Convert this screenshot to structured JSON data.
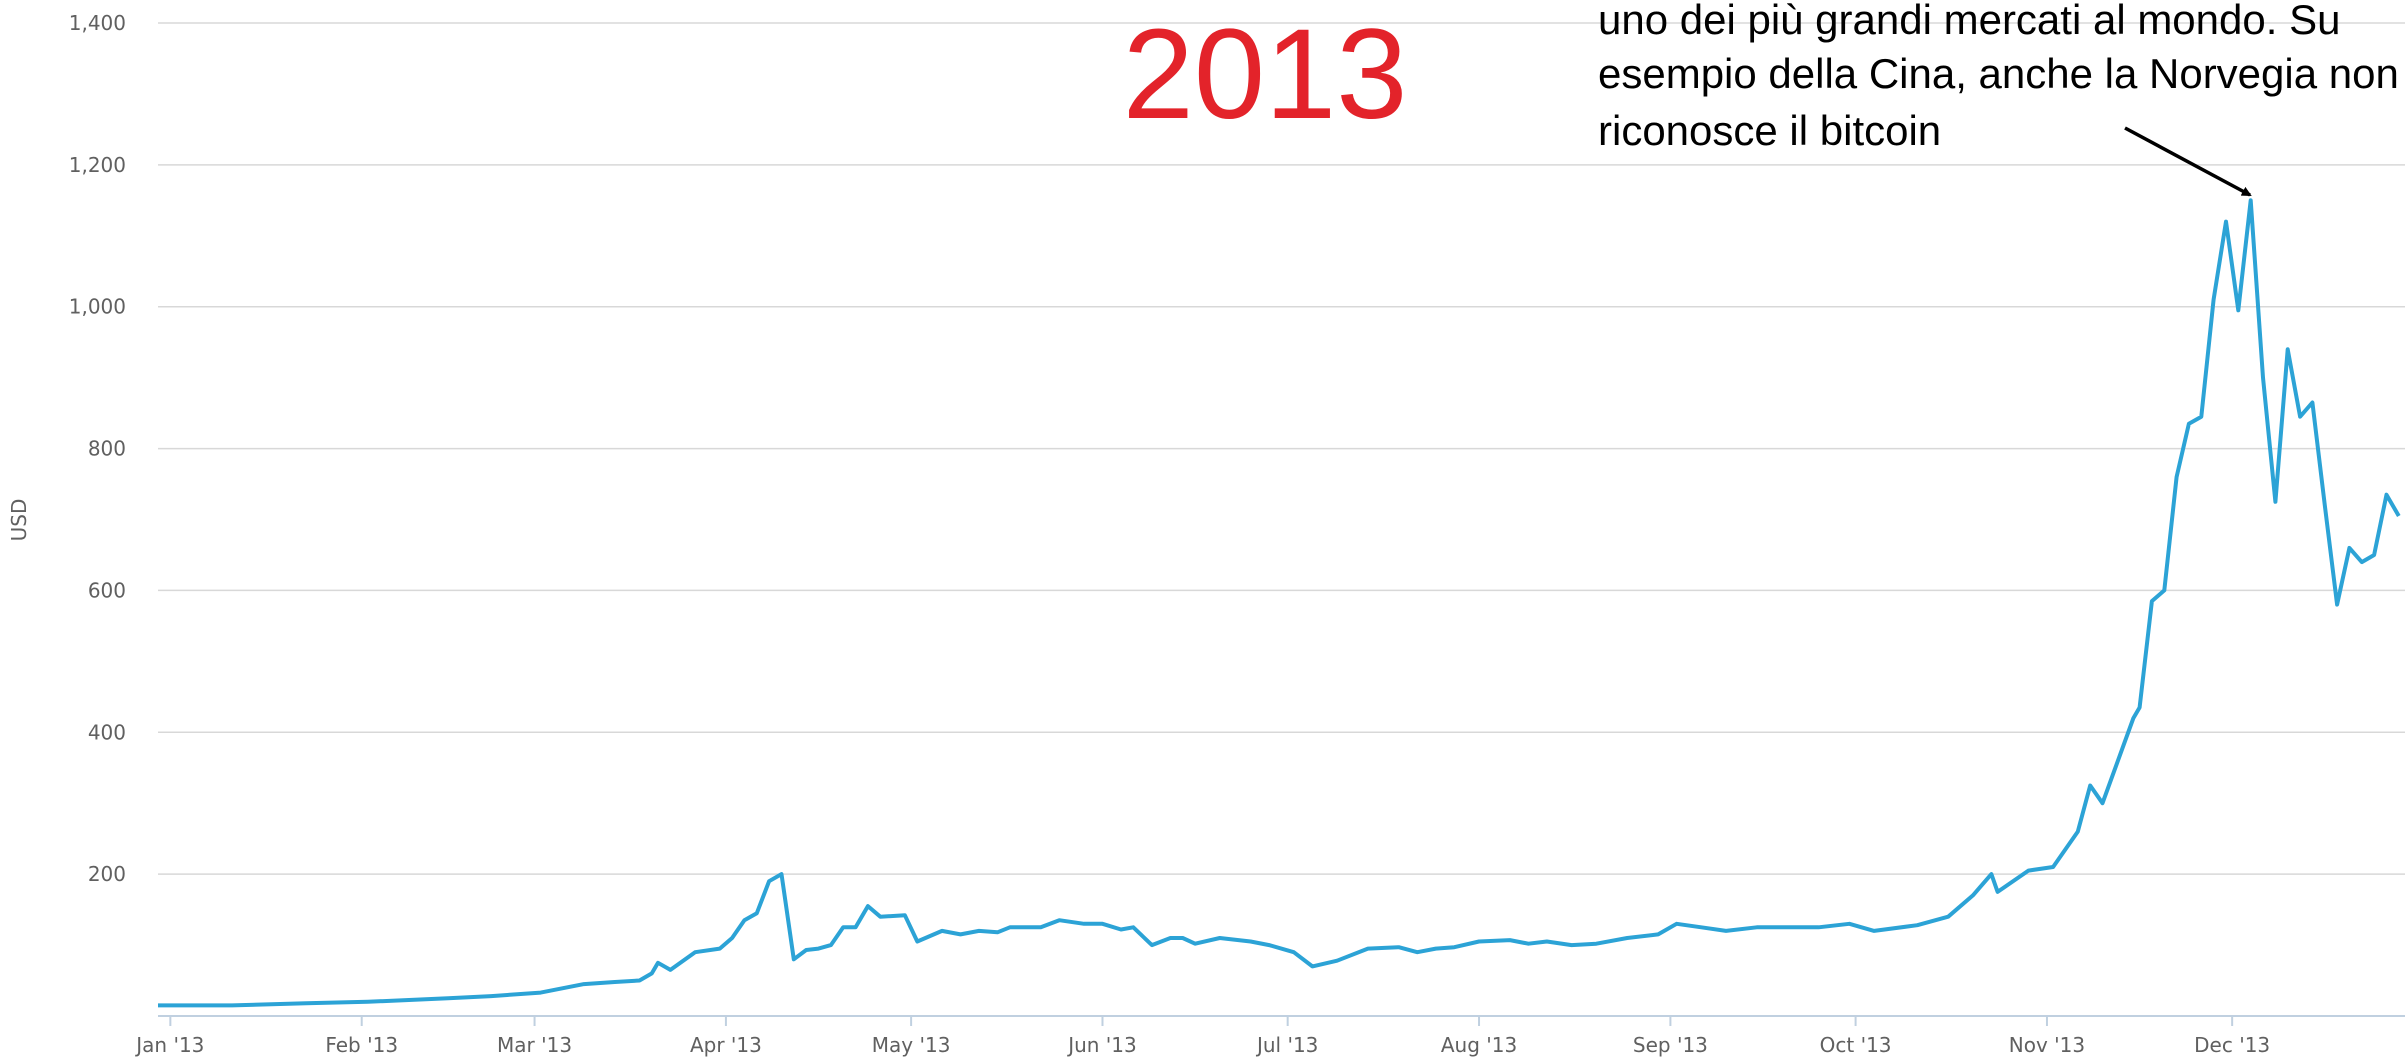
{
  "chart_data": {
    "type": "line",
    "title": "2013",
    "y_label": "USD",
    "annotation": [
      "uno dei più grandi mercati al mondo. Su",
      "esempio della Cina, anche la Norvegia non",
      "riconosce il bitcoin"
    ],
    "xlim": [
      -2,
      362
    ],
    "xticks": [
      {
        "value": 0,
        "label": "Jan '13"
      },
      {
        "value": 31,
        "label": "Feb '13"
      },
      {
        "value": 59,
        "label": "Mar '13"
      },
      {
        "value": 90,
        "label": "Apr '13"
      },
      {
        "value": 120,
        "label": "May '13"
      },
      {
        "value": 151,
        "label": "Jun '13"
      },
      {
        "value": 181,
        "label": "Jul '13"
      },
      {
        "value": 212,
        "label": "Aug '13"
      },
      {
        "value": 243,
        "label": "Sep '13"
      },
      {
        "value": 273,
        "label": "Oct '13"
      },
      {
        "value": 304,
        "label": "Nov '13"
      },
      {
        "value": 334,
        "label": "Dec '13"
      }
    ],
    "ylim": [
      0,
      1400
    ],
    "yticks": [
      {
        "value": 200,
        "label": "200"
      },
      {
        "value": 400,
        "label": "400"
      },
      {
        "value": 600,
        "label": "600"
      },
      {
        "value": 800,
        "label": "800"
      },
      {
        "value": 1000,
        "label": "1,000"
      },
      {
        "value": 1200,
        "label": "1,200"
      },
      {
        "value": 1400,
        "label": "1,400"
      }
    ],
    "grid": true,
    "x": [
      -2,
      10,
      22,
      32,
      45,
      52,
      60,
      67,
      72,
      76,
      78,
      79,
      81,
      85,
      89,
      91,
      93,
      95,
      97,
      99,
      101,
      103,
      105,
      107,
      109,
      111,
      113,
      115,
      119,
      121,
      125,
      128,
      131,
      134,
      136,
      141,
      144,
      148,
      151,
      154,
      156,
      159,
      162,
      164,
      166,
      170,
      175,
      178,
      182,
      185,
      189,
      194,
      199,
      202,
      205,
      208,
      212,
      217,
      220,
      223,
      227,
      231,
      236,
      241,
      244,
      248,
      252,
      257,
      262,
      267,
      272,
      276,
      283,
      288,
      292,
      295,
      296,
      301,
      305,
      309,
      311,
      313,
      318,
      319,
      321,
      323,
      325,
      327,
      329,
      331,
      333,
      335,
      337,
      339,
      341,
      343,
      345,
      347,
      349,
      351,
      353,
      355,
      357,
      359,
      361
    ],
    "series": [
      {
        "name": "USD",
        "color": "#2ca3d6",
        "values": [
          15,
          15,
          18,
          20,
          25,
          28,
          33,
          45,
          48,
          50,
          60,
          75,
          65,
          90,
          95,
          110,
          135,
          145,
          190,
          200,
          80,
          93,
          95,
          100,
          125,
          125,
          155,
          140,
          142,
          105,
          120,
          115,
          120,
          118,
          125,
          125,
          135,
          130,
          130,
          122,
          125,
          100,
          110,
          110,
          102,
          110,
          105,
          100,
          90,
          70,
          78,
          95,
          97,
          90,
          95,
          97,
          105,
          107,
          102,
          105,
          100,
          102,
          110,
          115,
          130,
          125,
          120,
          125,
          125,
          125,
          130,
          120,
          128,
          140,
          170,
          200,
          175,
          205,
          210,
          260,
          325,
          300,
          420,
          435,
          585,
          600,
          760,
          835,
          845,
          1010,
          1120,
          995,
          1150,
          900,
          725,
          940,
          845,
          865,
          720,
          580,
          660,
          640,
          650,
          735,
          705
        ]
      }
    ]
  }
}
